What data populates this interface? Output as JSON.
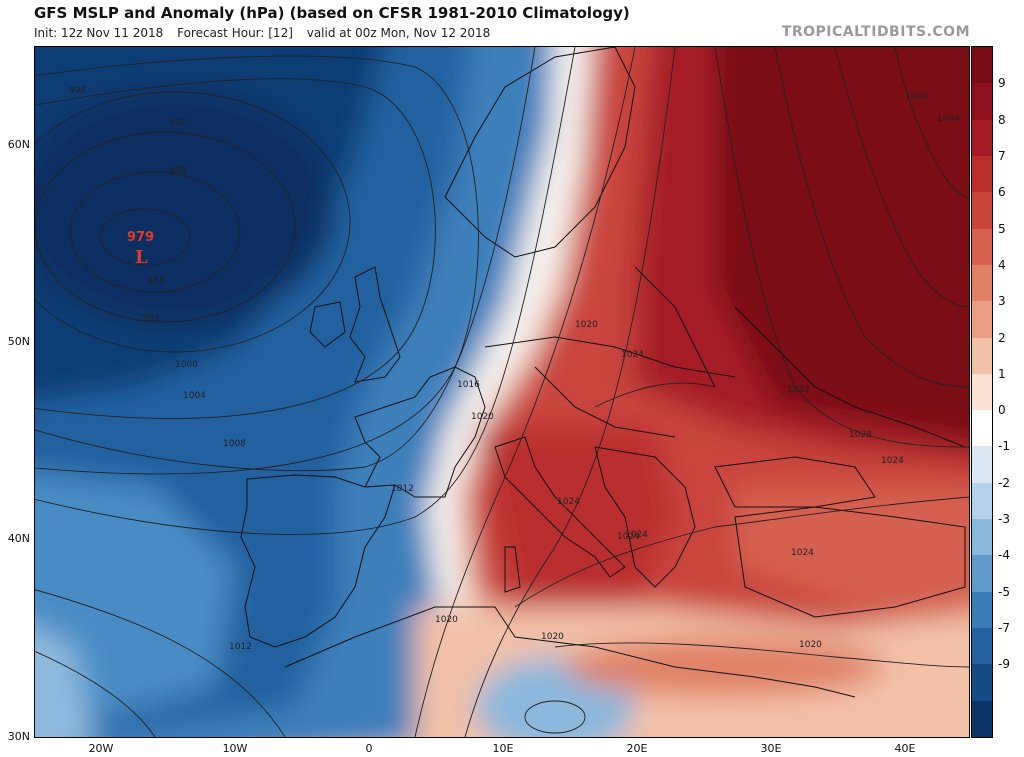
{
  "header": {
    "title": "GFS MSLP and Anomaly (hPa) (based on CFSR 1981-2010 Climatology)",
    "init": "Init: 12z Nov 11 2018",
    "forecast_hour": "Forecast Hour: [12]",
    "valid": "valid at 00z Mon, Nov 12 2018",
    "credit": "TROPICALTIDBITS.COM"
  },
  "axes": {
    "lat_labels": [
      "60N",
      "50N",
      "40N",
      "30N"
    ],
    "lon_labels": [
      "20W",
      "10W",
      "0",
      "10E",
      "20E",
      "30E",
      "40E"
    ]
  },
  "low_center": {
    "value": "979",
    "symbol": "L"
  },
  "isobar_labels": [
    "996",
    "992",
    "988",
    "984",
    "992",
    "1000",
    "1004",
    "1008",
    "1012",
    "1012",
    "1016",
    "1020",
    "1024",
    "1020",
    "1024",
    "1024",
    "1024",
    "1032",
    "1028",
    "1024",
    "1040",
    "1044",
    "1020",
    "1020",
    "1020",
    "1024"
  ],
  "colorbar": {
    "labels": [
      "9",
      "8",
      "7",
      "6",
      "5",
      "4",
      "3",
      "2",
      "1",
      "0",
      "-1",
      "-2",
      "-3",
      "-4",
      "-5",
      "-7",
      "-9"
    ],
    "colors": [
      "#7a0a16",
      "#8e0f1d",
      "#a51b25",
      "#b92d2d",
      "#c9453c",
      "#d6614f",
      "#e08166",
      "#ea9f84",
      "#f3c1a8",
      "#fbe2d4",
      "#ffffff",
      "#dbe8f4",
      "#b5d2ea",
      "#8bb8dc",
      "#5f9acb",
      "#3a7cb8",
      "#2361a0",
      "#144a86",
      "#0b3366"
    ]
  }
}
